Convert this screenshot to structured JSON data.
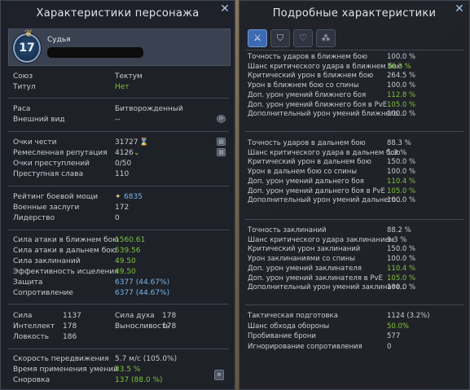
{
  "left": {
    "title": "Характеристики персонажа",
    "level": "17",
    "name_label": "Судья",
    "union": {
      "label": "Союз",
      "value": "Тектум"
    },
    "title_row": {
      "label": "Титул",
      "value": "Нет"
    },
    "race": {
      "label": "Раса",
      "value": "Битворожденный"
    },
    "appearance": {
      "label": "Внешний вид",
      "value": "--"
    },
    "honor": {
      "label": "Очки чести",
      "value": "31727"
    },
    "craft_rep": {
      "label": "Ремесленная репутация",
      "value": "4126"
    },
    "crime_points": {
      "label": "Очки преступлений",
      "value": "0/50"
    },
    "crime_fame": {
      "label": "Преступная слава",
      "value": "110"
    },
    "gear_score": {
      "label": "Рейтинг боевой мощи",
      "value": "6835"
    },
    "war_merit": {
      "label": "Военные заслуги",
      "value": "172"
    },
    "leadership": {
      "label": "Лидерство",
      "value": "0"
    },
    "melee_attack": {
      "label": "Сила атаки в ближнем бою",
      "value": "1560.61"
    },
    "ranged_attack": {
      "label": "Сила атаки в дальнем бою",
      "value": "539.56"
    },
    "spell_power": {
      "label": "Сила заклинаний",
      "value": "49.50"
    },
    "heal_power": {
      "label": "Эффективность исцеления",
      "value": "49.50"
    },
    "defense": {
      "label": "Защита",
      "value": "6377 (44.67%)"
    },
    "resistance": {
      "label": "Сопротивление",
      "value": "6377 (44.67%)"
    },
    "str": {
      "label": "Сила",
      "value": "1137"
    },
    "spirit": {
      "label": "Сила духа",
      "value": "178"
    },
    "int": {
      "label": "Интеллект",
      "value": "178"
    },
    "stamina": {
      "label": "Выносливость",
      "value": "178"
    },
    "agi": {
      "label": "Ловкость",
      "value": "186"
    },
    "move_speed": {
      "label": "Скорость передвижения",
      "value": "5.7 м/с (105.0%)"
    },
    "cast_time": {
      "label": "Время применения умений",
      "value": "83.5 %"
    },
    "attack_speed": {
      "label": "Сноровка",
      "value": "137 (88.0 %)"
    }
  },
  "right": {
    "title": "Подробные характеристики",
    "tabs": [
      "sword",
      "shield",
      "heart-plus",
      "dots"
    ],
    "melee": [
      {
        "label": "Точность ударов в ближнем бою",
        "value": "100.0 %",
        "color": "normal"
      },
      {
        "label": "Шанс критического удара в ближнем бою",
        "value": "36.3 %",
        "color": "green"
      },
      {
        "label": "Критический урон в ближнем бою",
        "value": "264.5 %",
        "color": "normal"
      },
      {
        "label": "Урон в ближнем бою со спины",
        "value": "100.0 %",
        "color": "normal"
      },
      {
        "label": "Доп. урон умений ближнего боя",
        "value": "112.8 %",
        "color": "green"
      },
      {
        "label": "Доп. урон умений ближнего боя в PvE",
        "value": "105.0 %",
        "color": "green"
      },
      {
        "label": "Дополнительный урон умений ближнего...",
        "value": "100.0 %",
        "color": "normal"
      }
    ],
    "ranged": [
      {
        "label": "Точность ударов в дальнем бою",
        "value": "88.3 %",
        "color": "normal"
      },
      {
        "label": "Шанс критического удара в дальнем бою",
        "value": "1.3 %",
        "color": "normal"
      },
      {
        "label": "Критический урон в дальнем бою",
        "value": "150.0 %",
        "color": "normal"
      },
      {
        "label": "Урон в дальнем бою со спины",
        "value": "100.0 %",
        "color": "normal"
      },
      {
        "label": "Доп. урон умений дальнего боя",
        "value": "110.4 %",
        "color": "green"
      },
      {
        "label": "Доп. урон умений дальнего боя в PvE",
        "value": "105.0 %",
        "color": "green"
      },
      {
        "label": "Дополнительный урон умений дальнего...",
        "value": "100.0 %",
        "color": "normal"
      }
    ],
    "magic": [
      {
        "label": "Точность заклинаний",
        "value": "88.2 %",
        "color": "normal"
      },
      {
        "label": "Шанс критического удара заклинанием",
        "value": "1.3 %",
        "color": "normal"
      },
      {
        "label": "Критический урон заклинаний",
        "value": "150.0 %",
        "color": "normal"
      },
      {
        "label": "Урон заклинаниями со спины",
        "value": "100.0 %",
        "color": "normal"
      },
      {
        "label": "Доп. урон умений заклинателя",
        "value": "110.4 %",
        "color": "green"
      },
      {
        "label": "Доп. урон умений заклинателя в PvE",
        "value": "105.0 %",
        "color": "green"
      },
      {
        "label": "Дополнительный урон умений заклинате...",
        "value": "100.0 %",
        "color": "normal"
      }
    ],
    "misc": [
      {
        "label": "Тактическая подготовка",
        "value": "1124 (3.2%)",
        "color": "normal"
      },
      {
        "label": "Шанс обхода обороны",
        "value": "50.0%",
        "color": "green"
      },
      {
        "label": "Пробивание брони",
        "value": "577",
        "color": "normal"
      },
      {
        "label": "Игнорирование сопротивления",
        "value": "0",
        "color": "normal"
      }
    ]
  },
  "colors": {
    "green": "#7ec23c",
    "blue": "#7ab3e8",
    "accent": "#3d6bb3"
  }
}
